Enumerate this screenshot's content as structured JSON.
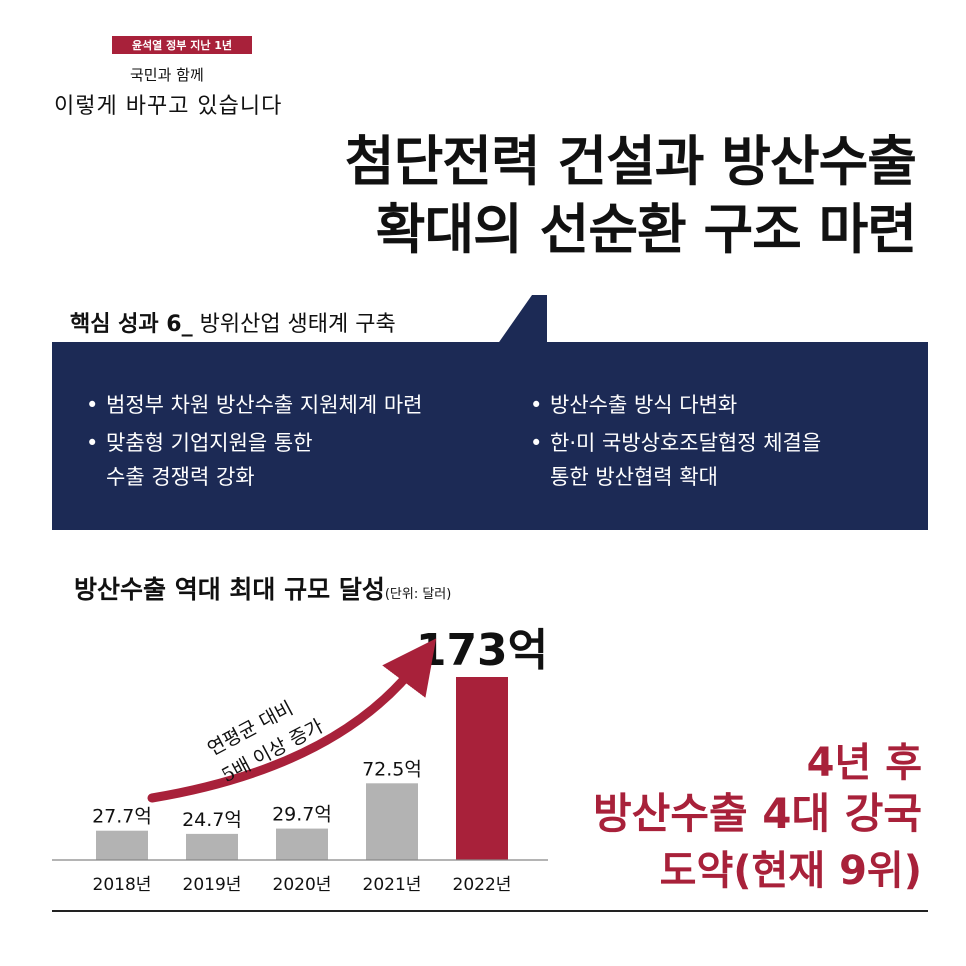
{
  "header": {
    "badge": "윤석열 정부 지난 1년",
    "slogan_line1": "국민과 함께",
    "slogan_line2": "이렇게 바꾸고 있습니다"
  },
  "title": {
    "line1": "첨단전력 건설과 방산수출",
    "line2": "확대의 선순환 구조 마련"
  },
  "section": {
    "prefix": "핵심 성과 6_",
    "label": "방위산업 생태계 구축"
  },
  "bullets_left": [
    [
      "범정부 차원 방산수출 지원체계 마련"
    ],
    [
      "맞춤형 기업지원을 통한",
      "수출 경쟁력 강화"
    ]
  ],
  "bullets_right": [
    [
      "방산수출 방식 다변화"
    ],
    [
      "한·미 국방상호조달협정 체결을",
      "통한 방산협력 확대"
    ]
  ],
  "arrow_label_line1": "연평균 대비",
  "arrow_label_line2": "5배 이상 증가",
  "highlight": {
    "line1": "4년 후",
    "line2": "방산수출 4대 강국",
    "line3": "도약(현재 9위)"
  },
  "colors": {
    "navy": "#1c2a55",
    "accent": "#a8213a",
    "bar_gray": "#b3b3b3"
  },
  "chart_data": {
    "type": "bar",
    "title": "방산수출 역대 최대 규모 달성",
    "unit": "(단위: 달러)",
    "categories": [
      "2018년",
      "2019년",
      "2020년",
      "2021년",
      "2022년"
    ],
    "values": [
      27.7,
      24.7,
      29.7,
      72.5,
      173
    ],
    "value_labels": [
      "27.7억",
      "24.7억",
      "29.7억",
      "72.5억",
      "173억"
    ],
    "highlight_index": 4,
    "ylim": [
      0,
      173
    ]
  }
}
